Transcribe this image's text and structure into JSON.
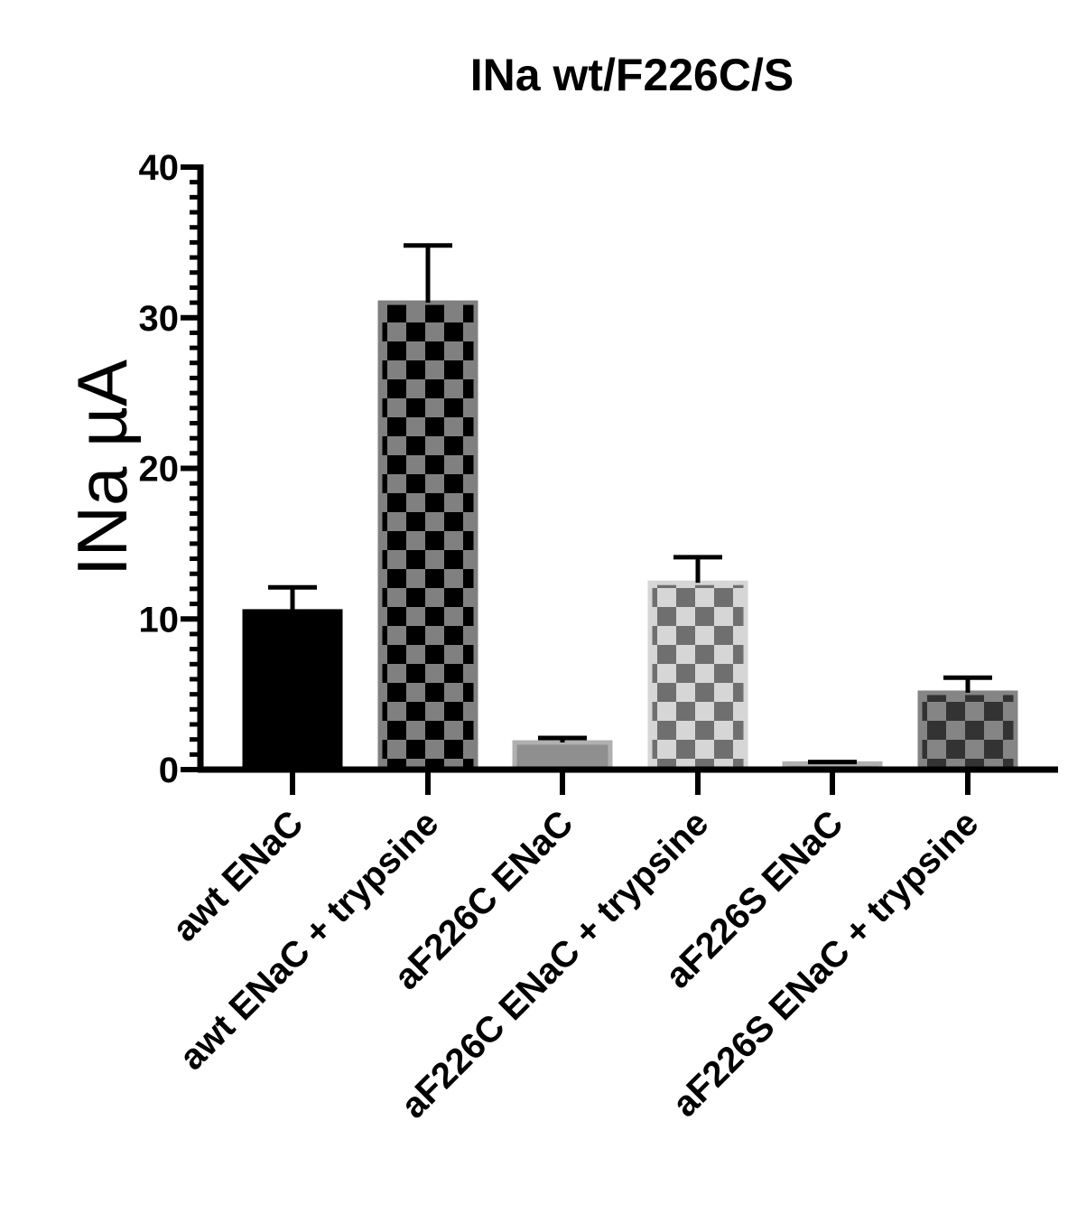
{
  "chart_data": {
    "type": "bar",
    "title": "INa wt/F226C/S",
    "ylabel": "INa µA",
    "xlabel": "",
    "ylim": [
      0,
      40
    ],
    "yticks": [
      0,
      10,
      20,
      30,
      40
    ],
    "y_minor_step": 1,
    "grid": false,
    "categories": [
      "awt ENaC",
      "awt ENaC + trypsine",
      "aF226C ENaC",
      "aF226C ENaC + trypsine",
      "aF226S ENaC",
      "aF226S ENaC + trypsine"
    ],
    "values": [
      10.5,
      31.0,
      1.8,
      12.4,
      0.4,
      5.1
    ],
    "errors": [
      1.6,
      3.8,
      0.3,
      1.7,
      0.1,
      1.0
    ],
    "fills": [
      {
        "pattern": "solid",
        "color": "#000000"
      },
      {
        "pattern": "checker",
        "base": "#808080",
        "square": "#000000"
      },
      {
        "pattern": "solid",
        "color": "#8f8f8f"
      },
      {
        "pattern": "checker",
        "base": "#d6d6d6",
        "square": "#6f6f6f"
      },
      {
        "pattern": "solid",
        "color": "#9a9a9a"
      },
      {
        "pattern": "checker",
        "base": "#858585",
        "square": "#333333"
      }
    ]
  }
}
